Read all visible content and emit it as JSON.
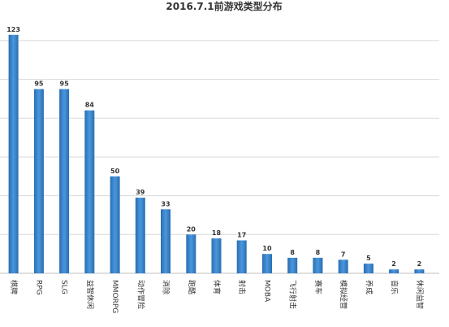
{
  "chart_data": {
    "type": "bar",
    "title": "2016.7.1前游戏类型分布",
    "xlabel": "",
    "ylabel": "",
    "ylim": [
      0,
      125
    ],
    "grid": true,
    "legend": "none",
    "bar_color": "#2e75b6",
    "categories": [
      "棋牌",
      "RPG",
      "SLG",
      "益智休闲",
      "MMORPG",
      "动作冒险",
      "消除",
      "跑酷",
      "体育",
      "射击",
      "MOBA",
      "飞行射击",
      "赛车",
      "模拟经营",
      "养成",
      "音乐",
      "休闲益智"
    ],
    "values": [
      123,
      95,
      95,
      84,
      50,
      39,
      33,
      20,
      18,
      17,
      10,
      8,
      8,
      7,
      5,
      2,
      2
    ]
  }
}
